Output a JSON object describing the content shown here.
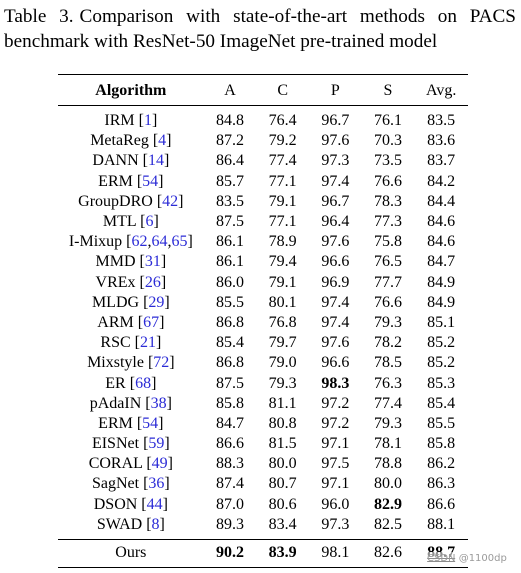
{
  "caption": {
    "label": "Table 3.",
    "text": "Comparison with state-of-the-art methods on PACS benchmark with ResNet-50 ImageNet pre-trained model"
  },
  "table": {
    "headers": [
      "Algorithm",
      "A",
      "C",
      "P",
      "S",
      "Avg."
    ],
    "rows": [
      {
        "name": "IRM",
        "refs": [
          "1"
        ],
        "values": [
          "84.8",
          "76.4",
          "96.7",
          "76.1",
          "83.5"
        ],
        "bold": []
      },
      {
        "name": "MetaReg",
        "refs": [
          "4"
        ],
        "values": [
          "87.2",
          "79.2",
          "97.6",
          "70.3",
          "83.6"
        ],
        "bold": []
      },
      {
        "name": "DANN",
        "refs": [
          "14"
        ],
        "values": [
          "86.4",
          "77.4",
          "97.3",
          "73.5",
          "83.7"
        ],
        "bold": []
      },
      {
        "name": "ERM",
        "refs": [
          "54"
        ],
        "values": [
          "85.7",
          "77.1",
          "97.4",
          "76.6",
          "84.2"
        ],
        "bold": []
      },
      {
        "name": "GroupDRO",
        "refs": [
          "42"
        ],
        "values": [
          "83.5",
          "79.1",
          "96.7",
          "78.3",
          "84.4"
        ],
        "bold": []
      },
      {
        "name": "MTL",
        "refs": [
          "6"
        ],
        "values": [
          "87.5",
          "77.1",
          "96.4",
          "77.3",
          "84.6"
        ],
        "bold": []
      },
      {
        "name": "I-Mixup",
        "refs": [
          "62",
          "64",
          "65"
        ],
        "values": [
          "86.1",
          "78.9",
          "97.6",
          "75.8",
          "84.6"
        ],
        "bold": []
      },
      {
        "name": "MMD",
        "refs": [
          "31"
        ],
        "values": [
          "86.1",
          "79.4",
          "96.6",
          "76.5",
          "84.7"
        ],
        "bold": []
      },
      {
        "name": "VREx",
        "refs": [
          "26"
        ],
        "values": [
          "86.0",
          "79.1",
          "96.9",
          "77.7",
          "84.9"
        ],
        "bold": []
      },
      {
        "name": "MLDG",
        "refs": [
          "29"
        ],
        "values": [
          "85.5",
          "80.1",
          "97.4",
          "76.6",
          "84.9"
        ],
        "bold": []
      },
      {
        "name": "ARM",
        "refs": [
          "67"
        ],
        "values": [
          "86.8",
          "76.8",
          "97.4",
          "79.3",
          "85.1"
        ],
        "bold": []
      },
      {
        "name": "RSC",
        "refs": [
          "21"
        ],
        "values": [
          "85.4",
          "79.7",
          "97.6",
          "78.2",
          "85.2"
        ],
        "bold": []
      },
      {
        "name": "Mixstyle",
        "refs": [
          "72"
        ],
        "values": [
          "86.8",
          "79.0",
          "96.6",
          "78.5",
          "85.2"
        ],
        "bold": []
      },
      {
        "name": "ER",
        "refs": [
          "68"
        ],
        "values": [
          "87.5",
          "79.3",
          "98.3",
          "76.3",
          "85.3"
        ],
        "bold": [
          2
        ]
      },
      {
        "name": "pAdaIN",
        "refs": [
          "38"
        ],
        "values": [
          "85.8",
          "81.1",
          "97.2",
          "77.4",
          "85.4"
        ],
        "bold": []
      },
      {
        "name": "ERM",
        "refs": [
          "54"
        ],
        "values": [
          "84.7",
          "80.8",
          "97.2",
          "79.3",
          "85.5"
        ],
        "bold": []
      },
      {
        "name": "EISNet",
        "refs": [
          "59"
        ],
        "values": [
          "86.6",
          "81.5",
          "97.1",
          "78.1",
          "85.8"
        ],
        "bold": []
      },
      {
        "name": "CORAL",
        "refs": [
          "49"
        ],
        "values": [
          "88.3",
          "80.0",
          "97.5",
          "78.8",
          "86.2"
        ],
        "bold": []
      },
      {
        "name": "SagNet",
        "refs": [
          "36"
        ],
        "values": [
          "87.4",
          "80.7",
          "97.1",
          "80.0",
          "86.3"
        ],
        "bold": []
      },
      {
        "name": "DSON",
        "refs": [
          "44"
        ],
        "values": [
          "87.0",
          "80.6",
          "96.0",
          "82.9",
          "86.6"
        ],
        "bold": [
          3
        ]
      },
      {
        "name": "SWAD",
        "refs": [
          "8"
        ],
        "values": [
          "89.3",
          "83.4",
          "97.3",
          "82.5",
          "88.1"
        ],
        "bold": []
      }
    ],
    "ours": {
      "name": "Ours",
      "values": [
        "90.2",
        "83.9",
        "98.1",
        "82.6",
        "88.7"
      ],
      "bold": [
        0,
        1,
        4
      ],
      "underline": [
        4
      ]
    }
  },
  "colors": {
    "ref_link": "#2b2bd6",
    "text": "#000000",
    "watermark": "#9a9a9a"
  },
  "watermark": "CSDN @1100dp"
}
